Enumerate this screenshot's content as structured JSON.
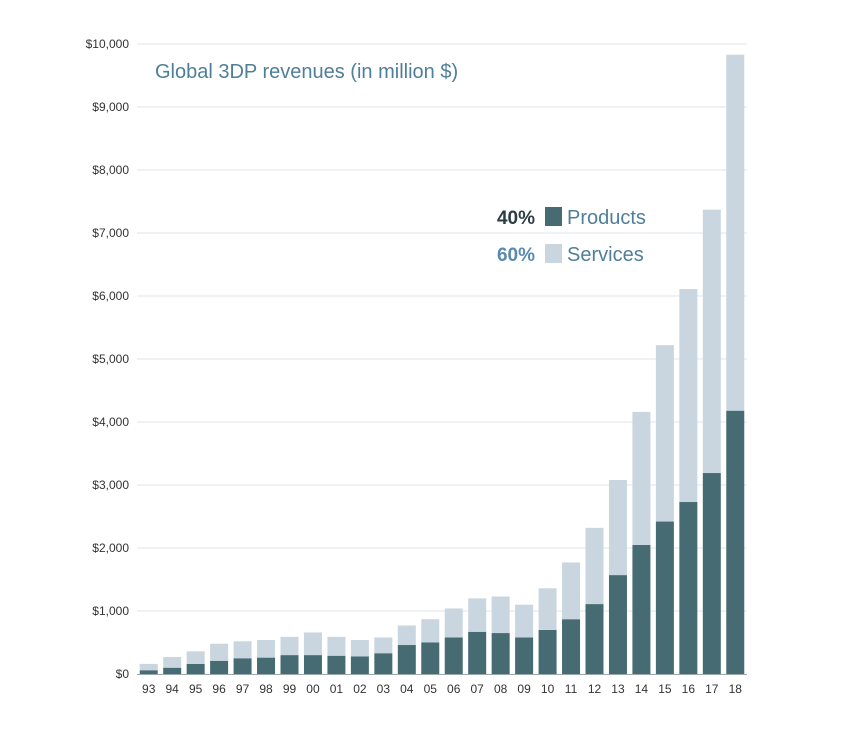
{
  "chart_data": {
    "type": "bar",
    "stacked": true,
    "title": "Global 3DP revenues (in million $)",
    "xlabel": "",
    "ylabel": "",
    "ylim": [
      0,
      10000
    ],
    "y_ticks": [
      "$0",
      "$1,000",
      "$2,000",
      "$3,000",
      "$4,000",
      "$5,000",
      "$6,000",
      "$7,000",
      "$8,000",
      "$9,000",
      "$10,000"
    ],
    "y_tick_values": [
      0,
      1000,
      2000,
      3000,
      4000,
      5000,
      6000,
      7000,
      8000,
      9000,
      10000
    ],
    "grid": true,
    "legend_position": "center-right",
    "categories": [
      "93",
      "94",
      "95",
      "96",
      "97",
      "98",
      "99",
      "00",
      "01",
      "02",
      "03",
      "04",
      "05",
      "06",
      "07",
      "08",
      "09",
      "10",
      "11",
      "12",
      "13",
      "14",
      "15",
      "16",
      "17",
      "18"
    ],
    "series": [
      {
        "name": "Products",
        "share": "40%",
        "color": "#466b73",
        "values": [
          60,
          100,
          160,
          210,
          250,
          260,
          300,
          300,
          290,
          280,
          330,
          460,
          500,
          580,
          670,
          650,
          580,
          700,
          870,
          1110,
          1570,
          2050,
          2420,
          2730,
          3190,
          4180
        ]
      },
      {
        "name": "Services",
        "share": "60%",
        "color": "#c9d6df",
        "values": [
          100,
          170,
          200,
          270,
          270,
          280,
          290,
          360,
          300,
          260,
          250,
          310,
          370,
          460,
          530,
          580,
          520,
          660,
          900,
          1210,
          1510,
          2110,
          2800,
          3380,
          4180,
          5650
        ]
      }
    ]
  },
  "colors": {
    "products": "#466b73",
    "services": "#c9d6df",
    "title": "#4f7f98",
    "products_pct": "#2c3e44",
    "services_pct": "#5a8ab0"
  }
}
